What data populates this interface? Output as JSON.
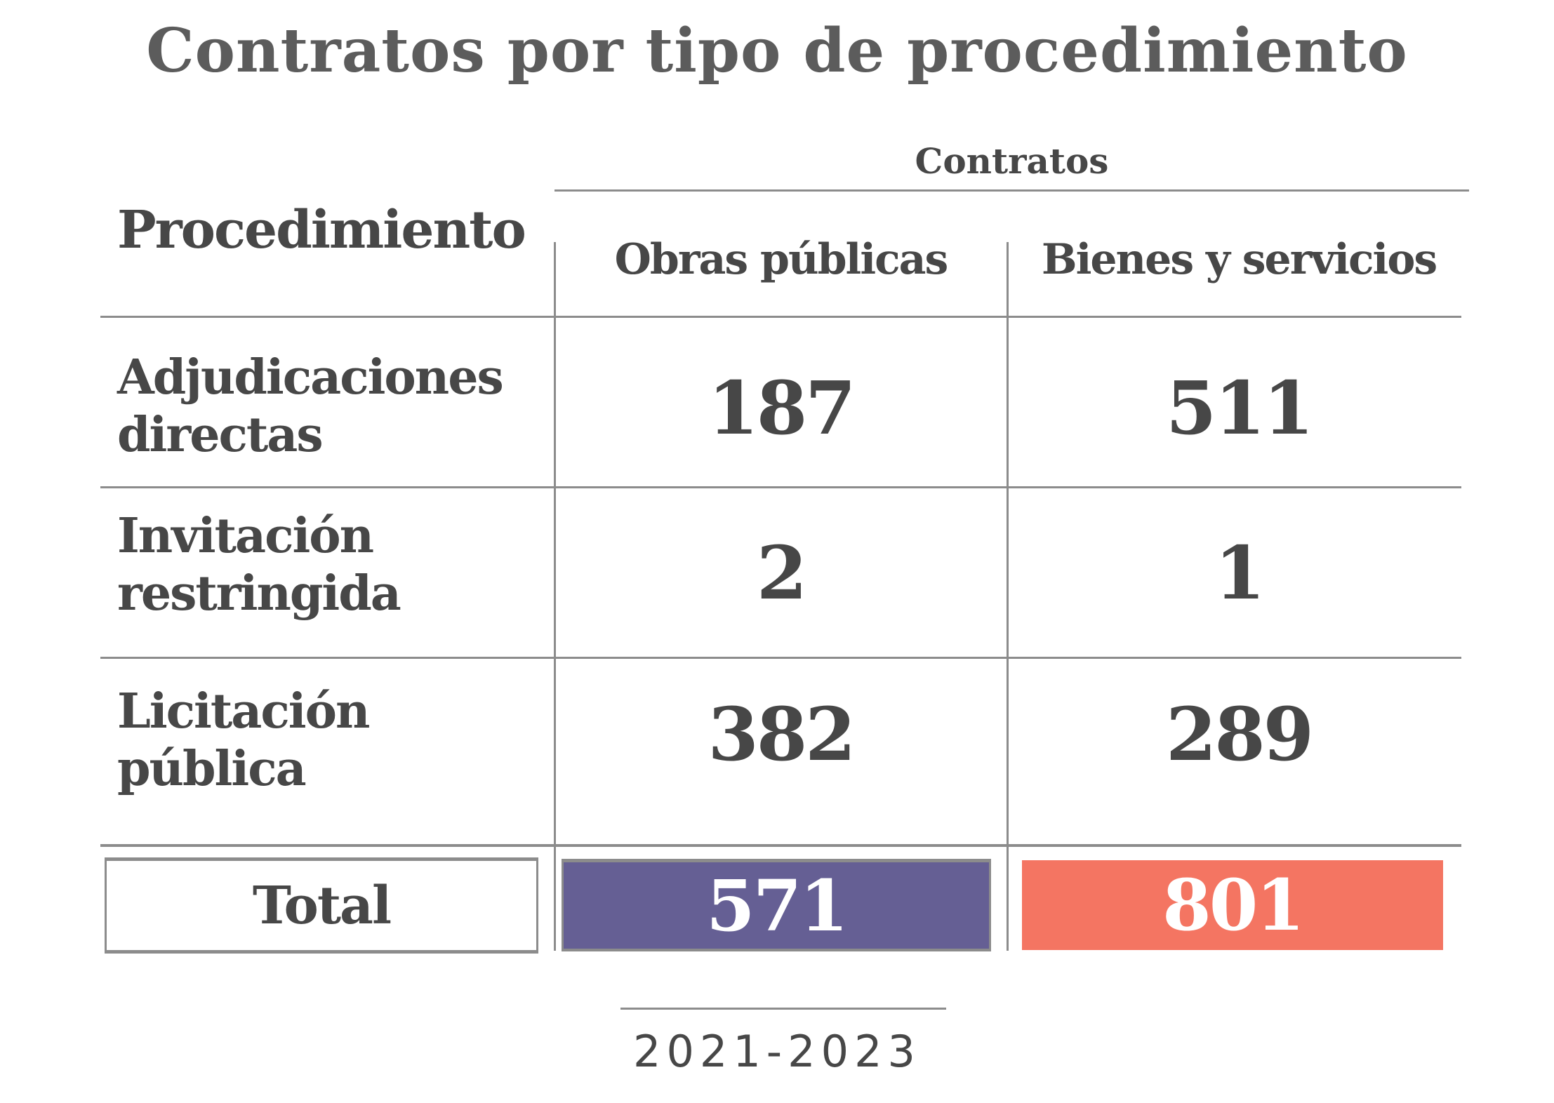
{
  "title": "Contratos por tipo de procedimiento",
  "chart_data": {
    "type": "table",
    "title": "Contratos por tipo de procedimiento",
    "column_group": "Contratos",
    "row_header": "Procedimiento",
    "columns": [
      "Obras públicas",
      "Bienes y servicios"
    ],
    "rows": [
      {
        "label_lines": [
          "Adjudicaciones",
          "directas"
        ],
        "values": [
          "187",
          "511"
        ]
      },
      {
        "label_lines": [
          "Invitación",
          "restringida"
        ],
        "values": [
          "2",
          "1"
        ]
      },
      {
        "label_lines": [
          "Licitación",
          "pública"
        ],
        "values": [
          "382",
          "289"
        ]
      }
    ],
    "total": {
      "label": "Total",
      "values": [
        "571",
        "801"
      ]
    },
    "period": "2021-2023"
  },
  "colors": {
    "obras": "#655f94",
    "bienes": "#f47562",
    "text": "#474747",
    "rule": "#8c8c8c"
  }
}
